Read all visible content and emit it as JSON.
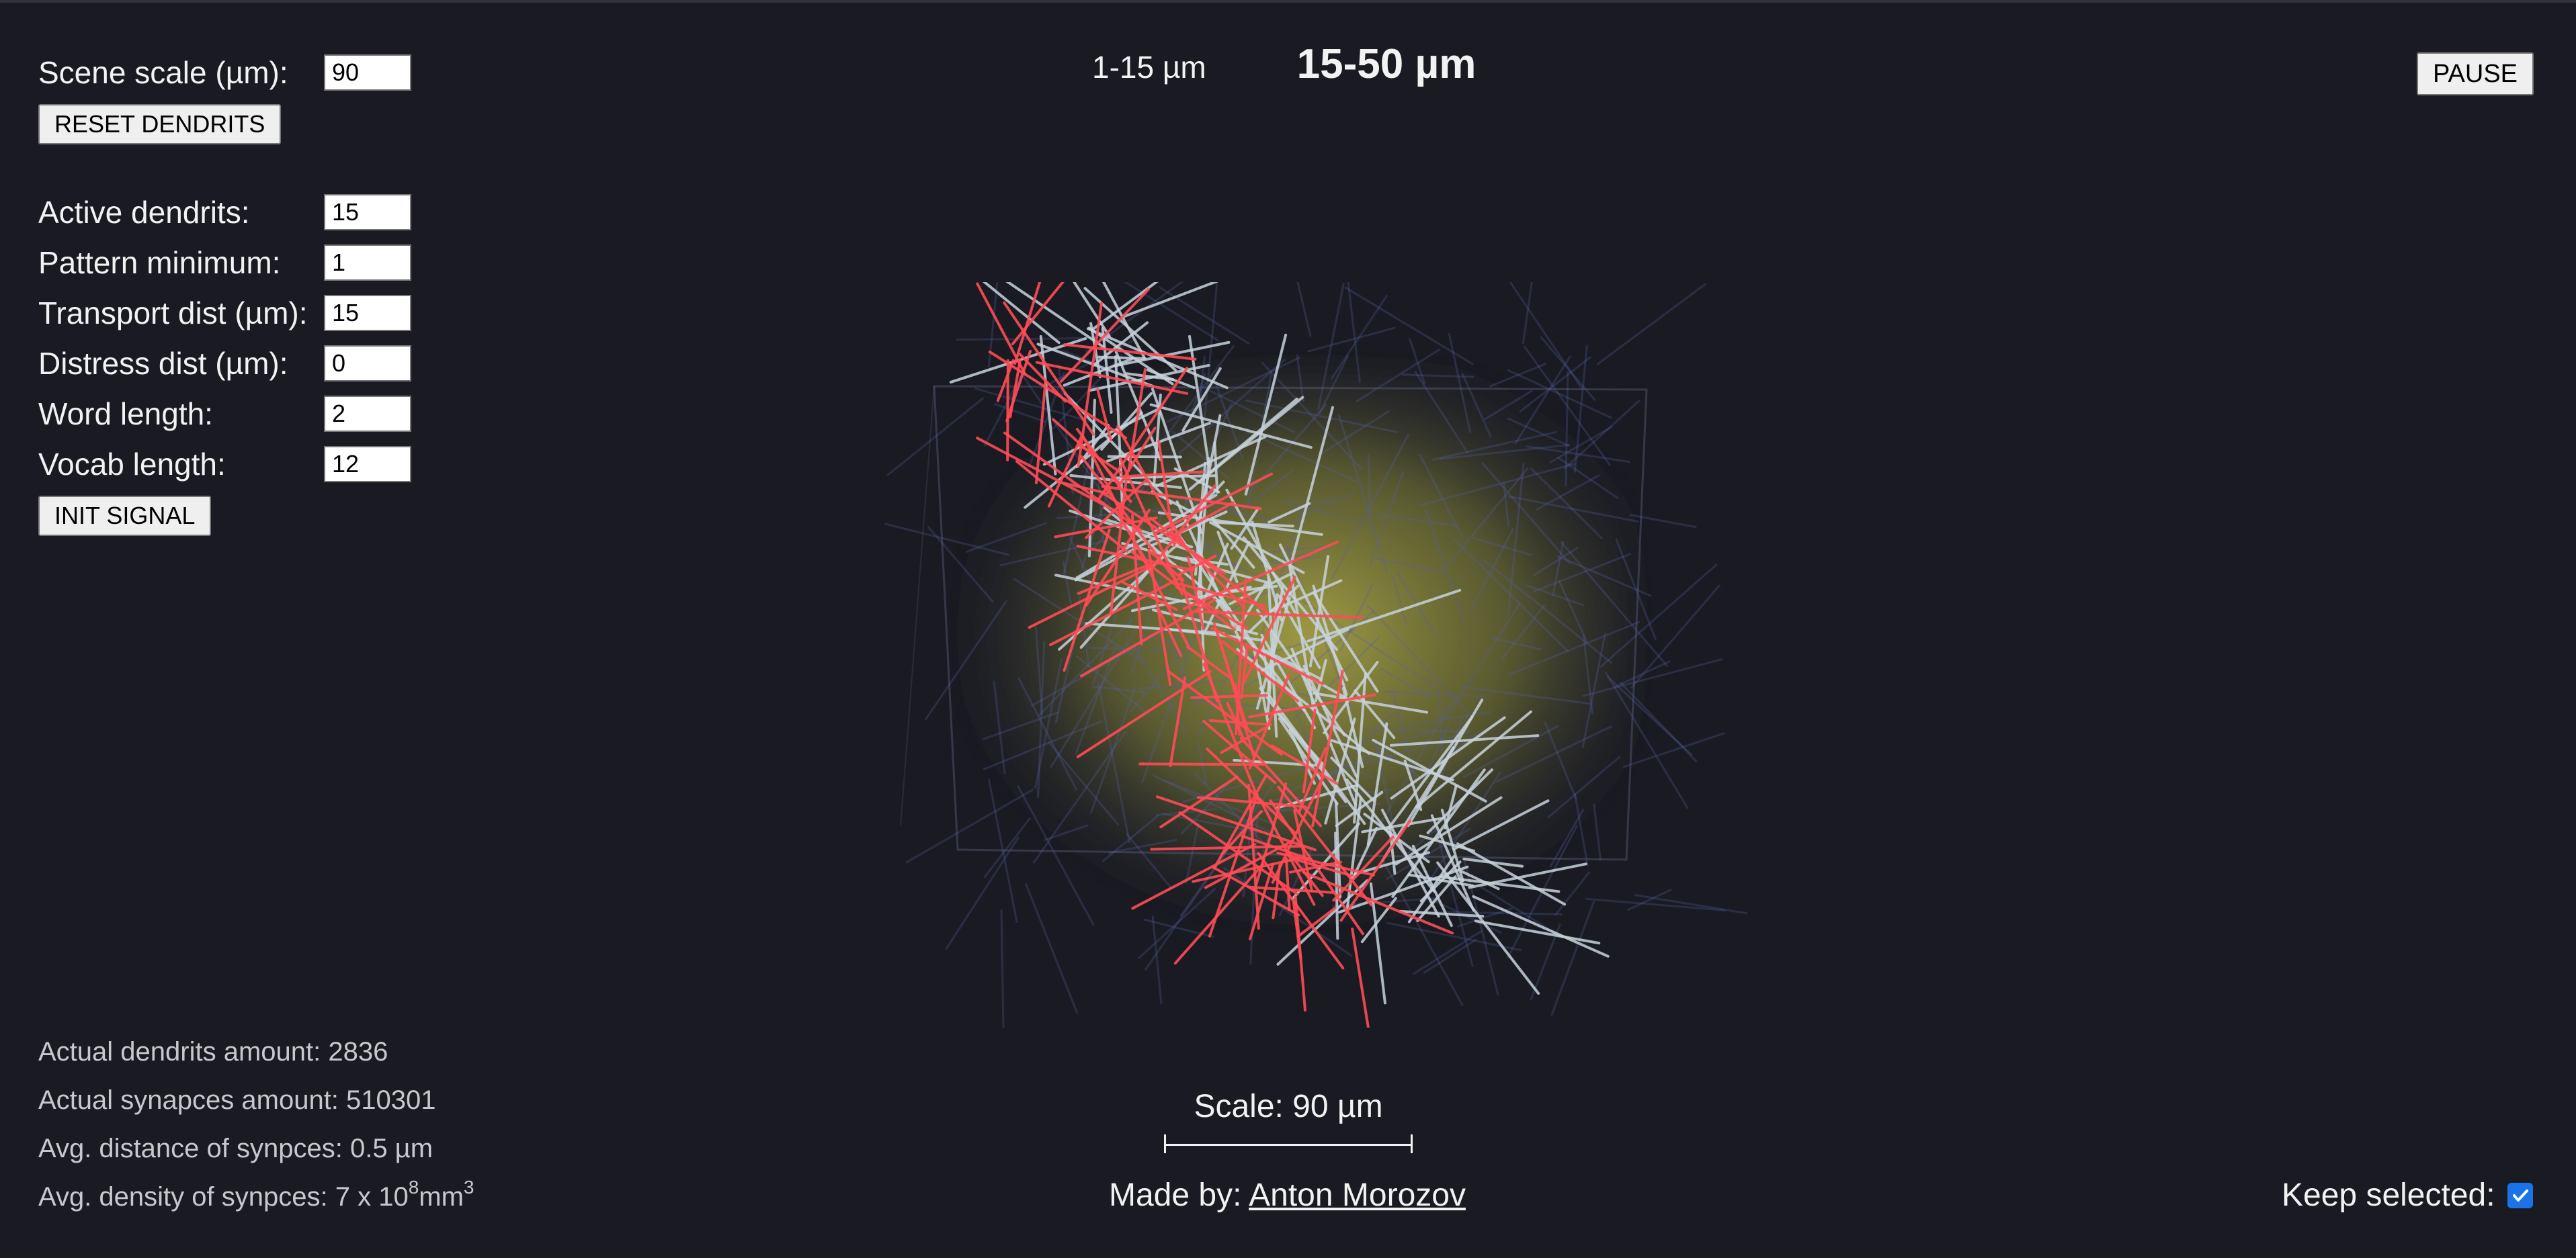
{
  "scene_scale": {
    "label": "Scene scale (µm):",
    "value": "90"
  },
  "reset_button": "RESET DENDRITS",
  "params": [
    {
      "label": "Active dendrits:",
      "value": "15"
    },
    {
      "label": "Pattern minimum:",
      "value": "1"
    },
    {
      "label": "Transport dist (µm):",
      "value": "15"
    },
    {
      "label": "Distress dist (µm):",
      "value": "0"
    },
    {
      "label": "Word length:",
      "value": "2"
    },
    {
      "label": "Vocab length:",
      "value": "12"
    }
  ],
  "init_button": "INIT SIGNAL",
  "tabs": {
    "small": "1-15 µm",
    "large": "15-50 µm"
  },
  "pause_button": "PAUSE",
  "stats": {
    "dendrits": "Actual dendrits amount: 2836",
    "synapses": "Actual synapces amount: 510301",
    "distance": "Avg. distance of synpces: 0.5 µm",
    "density_prefix": "Avg. density of synpces: 7 x 10",
    "density_exp": "8",
    "density_unit": " mm",
    "density_unit_exp": "3"
  },
  "scale": {
    "label": "Scale: 90 µm"
  },
  "credit": {
    "prefix": "Made by: ",
    "author": "Anton Morozov"
  },
  "keep_selected": {
    "label": "Keep selected:",
    "checked": true
  },
  "colors": {
    "background": "#1a1b22",
    "volume_glow": "#b9b44a",
    "active_dendrite": "#ff4b55",
    "passive_dendrite": "#c8d2dc",
    "faint_dendrite": "#5560a0"
  }
}
